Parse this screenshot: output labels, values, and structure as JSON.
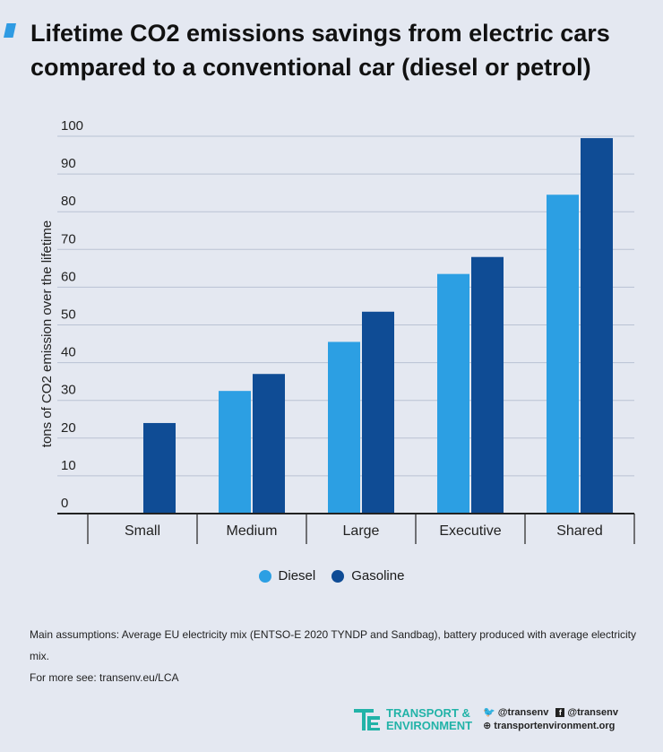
{
  "title": "Lifetime CO2 emissions savings from electric cars compared to a conventional car (diesel or petrol)",
  "chart_data": {
    "type": "bar",
    "categories": [
      "Small",
      "Medium",
      "Large",
      "Executive",
      "Shared"
    ],
    "series": [
      {
        "name": "Diesel",
        "color": "#2c9fe3",
        "values": [
          null,
          32.5,
          45.5,
          63.5,
          84.5
        ]
      },
      {
        "name": "Gasoline",
        "color": "#0f4c95",
        "values": [
          24,
          37,
          53.5,
          68,
          99.5
        ]
      }
    ],
    "ylabel": "tons of CO2 emission over the lifetime",
    "xlabel": "",
    "yticks": [
      0,
      10,
      20,
      30,
      40,
      50,
      60,
      70,
      80,
      90,
      100
    ],
    "ylim": [
      0,
      100
    ],
    "grid": true,
    "legend_position": "bottom-center"
  },
  "notes": {
    "assumptions": "Main assumptions: Average EU electricity mix (ENTSO-E 2020 TYNDP and Sandbag), battery produced with average electricity mix.",
    "more": "For more see: transenv.eu/LCA"
  },
  "footer": {
    "brand_line1": "TRANSPORT &",
    "brand_line2": "ENVIRONMENT",
    "twitter": "@transenv",
    "facebook": "@transenv",
    "website": "transportenvironment.org",
    "brand_color": "#22b3a8"
  }
}
